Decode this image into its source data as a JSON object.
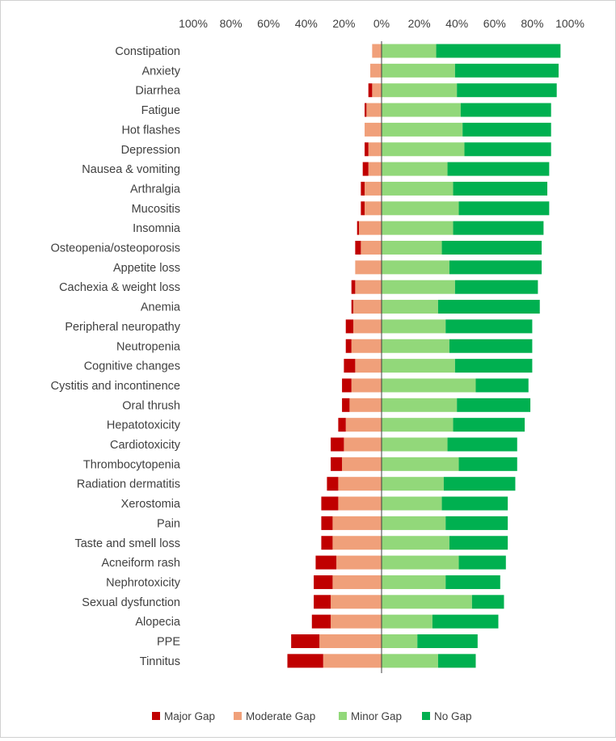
{
  "chart_data": {
    "type": "bar",
    "orientation": "horizontal-diverging-stacked",
    "title": "",
    "xlabel": "",
    "ylabel": "",
    "xlim": [
      -100,
      100
    ],
    "x_ticks": [
      "100%",
      "80%",
      "60%",
      "40%",
      "20%",
      "0%",
      "20%",
      "40%",
      "60%",
      "80%",
      "100%"
    ],
    "grid": false,
    "legend_position": "bottom",
    "categories": [
      "Constipation",
      "Anxiety",
      "Diarrhea",
      "Fatigue",
      "Hot flashes",
      "Depression",
      "Nausea & vomiting",
      "Arthralgia",
      "Mucositis",
      "Insomnia",
      "Osteopenia/osteoporosis",
      "Appetite loss",
      "Cachexia & weight loss",
      "Anemia",
      "Peripheral neuropathy",
      "Neutropenia",
      "Cognitive changes",
      "Cystitis and incontinence",
      "Oral thrush",
      "Hepatotoxicity",
      "Cardiotoxicity",
      "Thrombocytopenia",
      "Radiation dermatitis",
      "Xerostomia",
      "Pain",
      "Taste and smell loss",
      "Acneiform rash",
      "Nephrotoxicity",
      "Sexual dysfunction",
      "Alopecia",
      "PPE",
      "Tinnitus"
    ],
    "series": [
      {
        "name": "Major Gap",
        "side": "left",
        "color": "#C00000",
        "values": [
          0,
          0,
          2,
          1,
          0,
          2,
          3,
          2,
          2,
          1,
          3,
          0,
          2,
          1,
          4,
          3,
          6,
          5,
          4,
          4,
          7,
          6,
          6,
          9,
          6,
          6,
          11,
          10,
          9,
          10,
          15,
          19
        ]
      },
      {
        "name": "Moderate Gap",
        "side": "left",
        "color": "#F0A07A",
        "values": [
          5,
          6,
          5,
          8,
          9,
          7,
          7,
          9,
          9,
          12,
          11,
          14,
          14,
          15,
          15,
          16,
          14,
          16,
          17,
          19,
          20,
          21,
          23,
          23,
          26,
          26,
          24,
          26,
          27,
          27,
          33,
          31
        ]
      },
      {
        "name": "Minor Gap",
        "side": "right",
        "color": "#92D87A",
        "values": [
          29,
          39,
          40,
          42,
          43,
          44,
          35,
          38,
          41,
          38,
          32,
          36,
          39,
          30,
          34,
          36,
          39,
          50,
          40,
          38,
          35,
          41,
          33,
          32,
          34,
          36,
          41,
          34,
          48,
          27,
          19,
          30
        ]
      },
      {
        "name": "No Gap",
        "side": "right",
        "color": "#00B050",
        "values": [
          66,
          55,
          53,
          48,
          47,
          46,
          54,
          50,
          48,
          48,
          53,
          49,
          44,
          54,
          46,
          44,
          41,
          28,
          39,
          38,
          37,
          31,
          38,
          35,
          33,
          31,
          25,
          29,
          17,
          35,
          32,
          20
        ]
      }
    ]
  }
}
